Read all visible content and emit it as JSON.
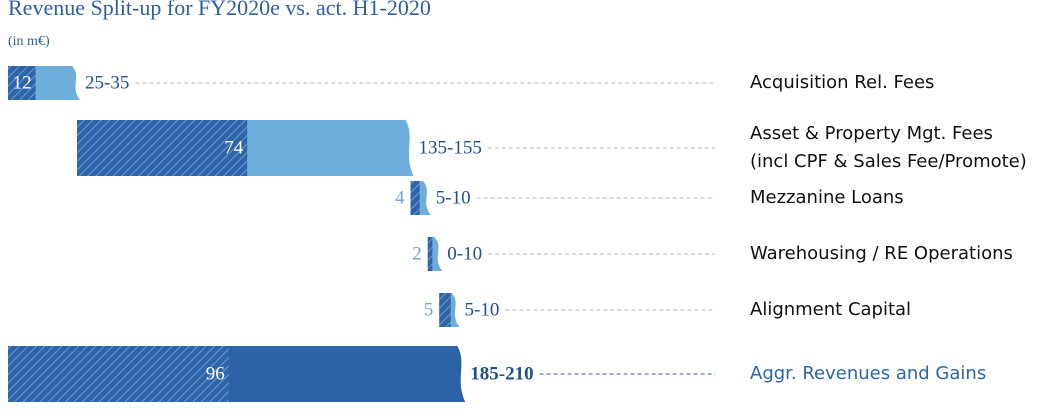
{
  "chart_data": {
    "type": "waterfall",
    "title": "Revenue Split-up for FY2020e vs. act. H1-2020",
    "subtitle": "(in m€)",
    "categories": [
      [
        "Acquisition Rel. Fees"
      ],
      [
        "Asset & Property Mgt. Fees",
        "(incl CPF & Sales Fee/Promote)"
      ],
      [
        "Mezzanine Loans"
      ],
      [
        "Warehousing / RE Operations"
      ],
      [
        "Alignment Capital"
      ],
      [
        "Aggr. Revenues and Gains"
      ]
    ],
    "values": [
      12,
      74,
      4,
      2,
      5,
      96
    ],
    "ranges": [
      [
        25,
        35
      ],
      [
        135,
        155
      ],
      [
        5,
        10
      ],
      [
        0,
        10
      ],
      [
        5,
        10
      ],
      [
        185,
        210
      ]
    ],
    "range_labels": [
      "25-35",
      "135-155",
      "5-10",
      "0-10",
      "5-10",
      "185-210"
    ],
    "xlim": [
      0,
      200
    ],
    "actual_color": "#2e64a8",
    "estimate_color": "#6eaedb",
    "total_color": "#2b63a6"
  }
}
